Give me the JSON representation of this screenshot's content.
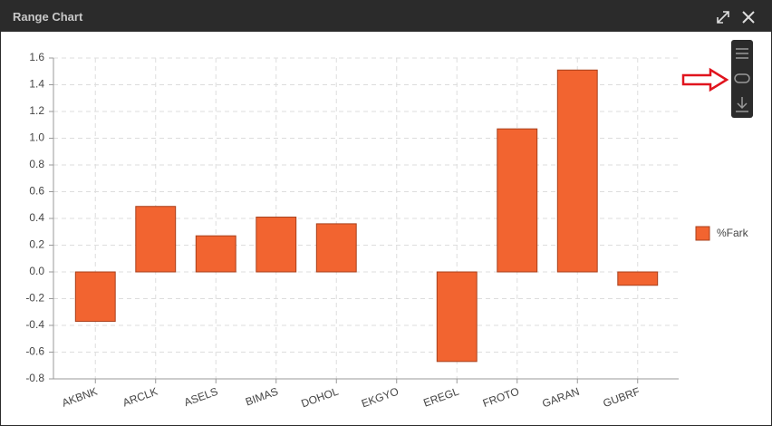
{
  "window": {
    "title": "Range Chart"
  },
  "chart_data": {
    "type": "bar",
    "categories": [
      "AKBNK",
      "ARCLK",
      "ASELS",
      "BIMAS",
      "DOHOL",
      "EKGYO",
      "EREGL",
      "FROTO",
      "GARAN",
      "GUBRF"
    ],
    "series": [
      {
        "name": "%Fark",
        "color": "#f26430",
        "values": [
          -0.37,
          0.49,
          0.27,
          0.41,
          0.36,
          0,
          -0.67,
          1.07,
          1.51,
          -0.1
        ]
      }
    ],
    "ylim": [
      -0.8,
      1.6
    ],
    "yticks": [
      1.6,
      1.4,
      1.2,
      {
        "value": 1.0,
        "label": "1.0"
      },
      0.8,
      0.6,
      0.4,
      0.2,
      {
        "value": 0,
        "label": "0.0"
      },
      -0.2,
      -0.4,
      -0.6,
      -0.8
    ],
    "grid": true,
    "legend": "right"
  }
}
